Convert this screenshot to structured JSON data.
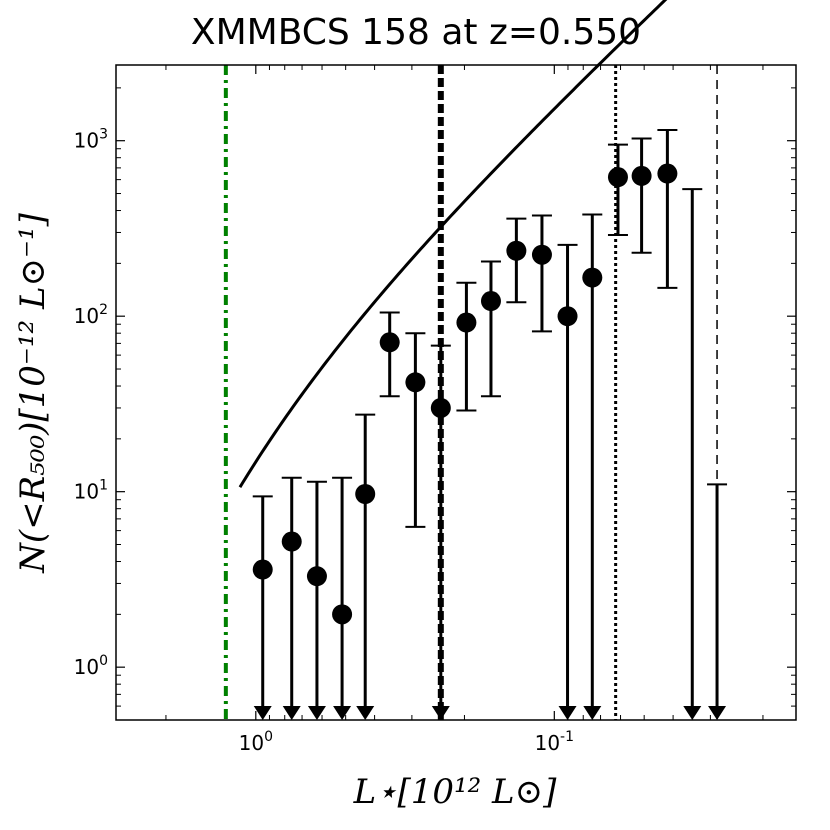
{
  "chart_data": {
    "type": "scatter",
    "title": "XMMBCS 158 at z=0.550",
    "xlabel": "L⋆[10¹² L⊙]",
    "ylabel": "N(<R₅₀₀)[10⁻¹² L⊙⁻¹]",
    "x_scale": "log",
    "y_scale": "log",
    "x_reversed": true,
    "xlim": [
      2.94,
      0.0155
    ],
    "ylim": [
      0.5,
      2700
    ],
    "x_ticks": [
      {
        "value": 1.0,
        "base": "10",
        "exp": "0"
      },
      {
        "value": 0.1,
        "base": "10",
        "exp": "-1"
      }
    ],
    "y_ticks": [
      {
        "value": 1,
        "base": "10",
        "exp": "0"
      },
      {
        "value": 10,
        "base": "10",
        "exp": "1"
      },
      {
        "value": 100,
        "base": "10",
        "exp": "2"
      },
      {
        "value": 1000,
        "base": "10",
        "exp": "3"
      }
    ],
    "points": [
      {
        "x": 0.948,
        "y": 3.6,
        "err_low": 0.5,
        "err_high": 9.4,
        "upper_limit_arrow": true
      },
      {
        "x": 0.758,
        "y": 5.2,
        "err_low": 0.5,
        "err_high": 12,
        "upper_limit_arrow": true
      },
      {
        "x": 0.624,
        "y": 3.3,
        "err_low": 0.5,
        "err_high": 11.4,
        "upper_limit_arrow": true
      },
      {
        "x": 0.514,
        "y": 2.0,
        "err_low": 0.5,
        "err_high": 12,
        "upper_limit_arrow": true
      },
      {
        "x": 0.43,
        "y": 9.7,
        "err_low": 0.5,
        "err_high": 27.5,
        "upper_limit_arrow": true
      },
      {
        "x": 0.356,
        "y": 71,
        "err_low": 35,
        "err_high": 105
      },
      {
        "x": 0.292,
        "y": 42,
        "err_low": 6.3,
        "err_high": 80
      },
      {
        "x": 0.24,
        "y": 30,
        "err_low": 0.5,
        "err_high": 68,
        "upper_limit_arrow": true
      },
      {
        "x": 0.197,
        "y": 92,
        "err_low": 29,
        "err_high": 155
      },
      {
        "x": 0.163,
        "y": 122,
        "err_low": 35,
        "err_high": 205
      },
      {
        "x": 0.134,
        "y": 236,
        "err_low": 120,
        "err_high": 360
      },
      {
        "x": 0.11,
        "y": 224,
        "err_low": 82,
        "err_high": 375
      },
      {
        "x": 0.0903,
        "y": 100,
        "err_low": 0.5,
        "err_high": 255,
        "upper_limit_arrow": true
      },
      {
        "x": 0.0746,
        "y": 166,
        "err_low": 0.5,
        "err_high": 380,
        "upper_limit_arrow": true
      },
      {
        "x": 0.0612,
        "y": 620,
        "err_low": 290,
        "err_high": 950
      },
      {
        "x": 0.051,
        "y": 630,
        "err_low": 230,
        "err_high": 1030
      },
      {
        "x": 0.0418,
        "y": 650,
        "err_low": 145,
        "err_high": 1150
      }
    ],
    "upper_limit_only": [
      {
        "x": 0.0345,
        "y_top": 530
      },
      {
        "x": 0.0285,
        "y_top": 11
      }
    ],
    "fit_curve": {
      "type": "schechter",
      "phi_star": 46,
      "l_star": 0.95,
      "alpha": -1.6,
      "x_range": [
        1.13,
        0.0155
      ]
    },
    "vertical_lines": [
      {
        "x": 1.26,
        "style": "dashdot",
        "color": "#008000",
        "width": 4
      },
      {
        "x": 0.24,
        "style": "dashed",
        "color": "#000000",
        "width": 6
      },
      {
        "x": 0.0623,
        "style": "dotted",
        "color": "#000000",
        "width": 3
      },
      {
        "x": 0.0285,
        "style": "dashed",
        "color": "#000000",
        "width": 1.5
      }
    ],
    "grid": false,
    "legend": "none",
    "colors": {
      "points": "#000000",
      "fit": "#000000",
      "green_line": "#008000"
    }
  }
}
